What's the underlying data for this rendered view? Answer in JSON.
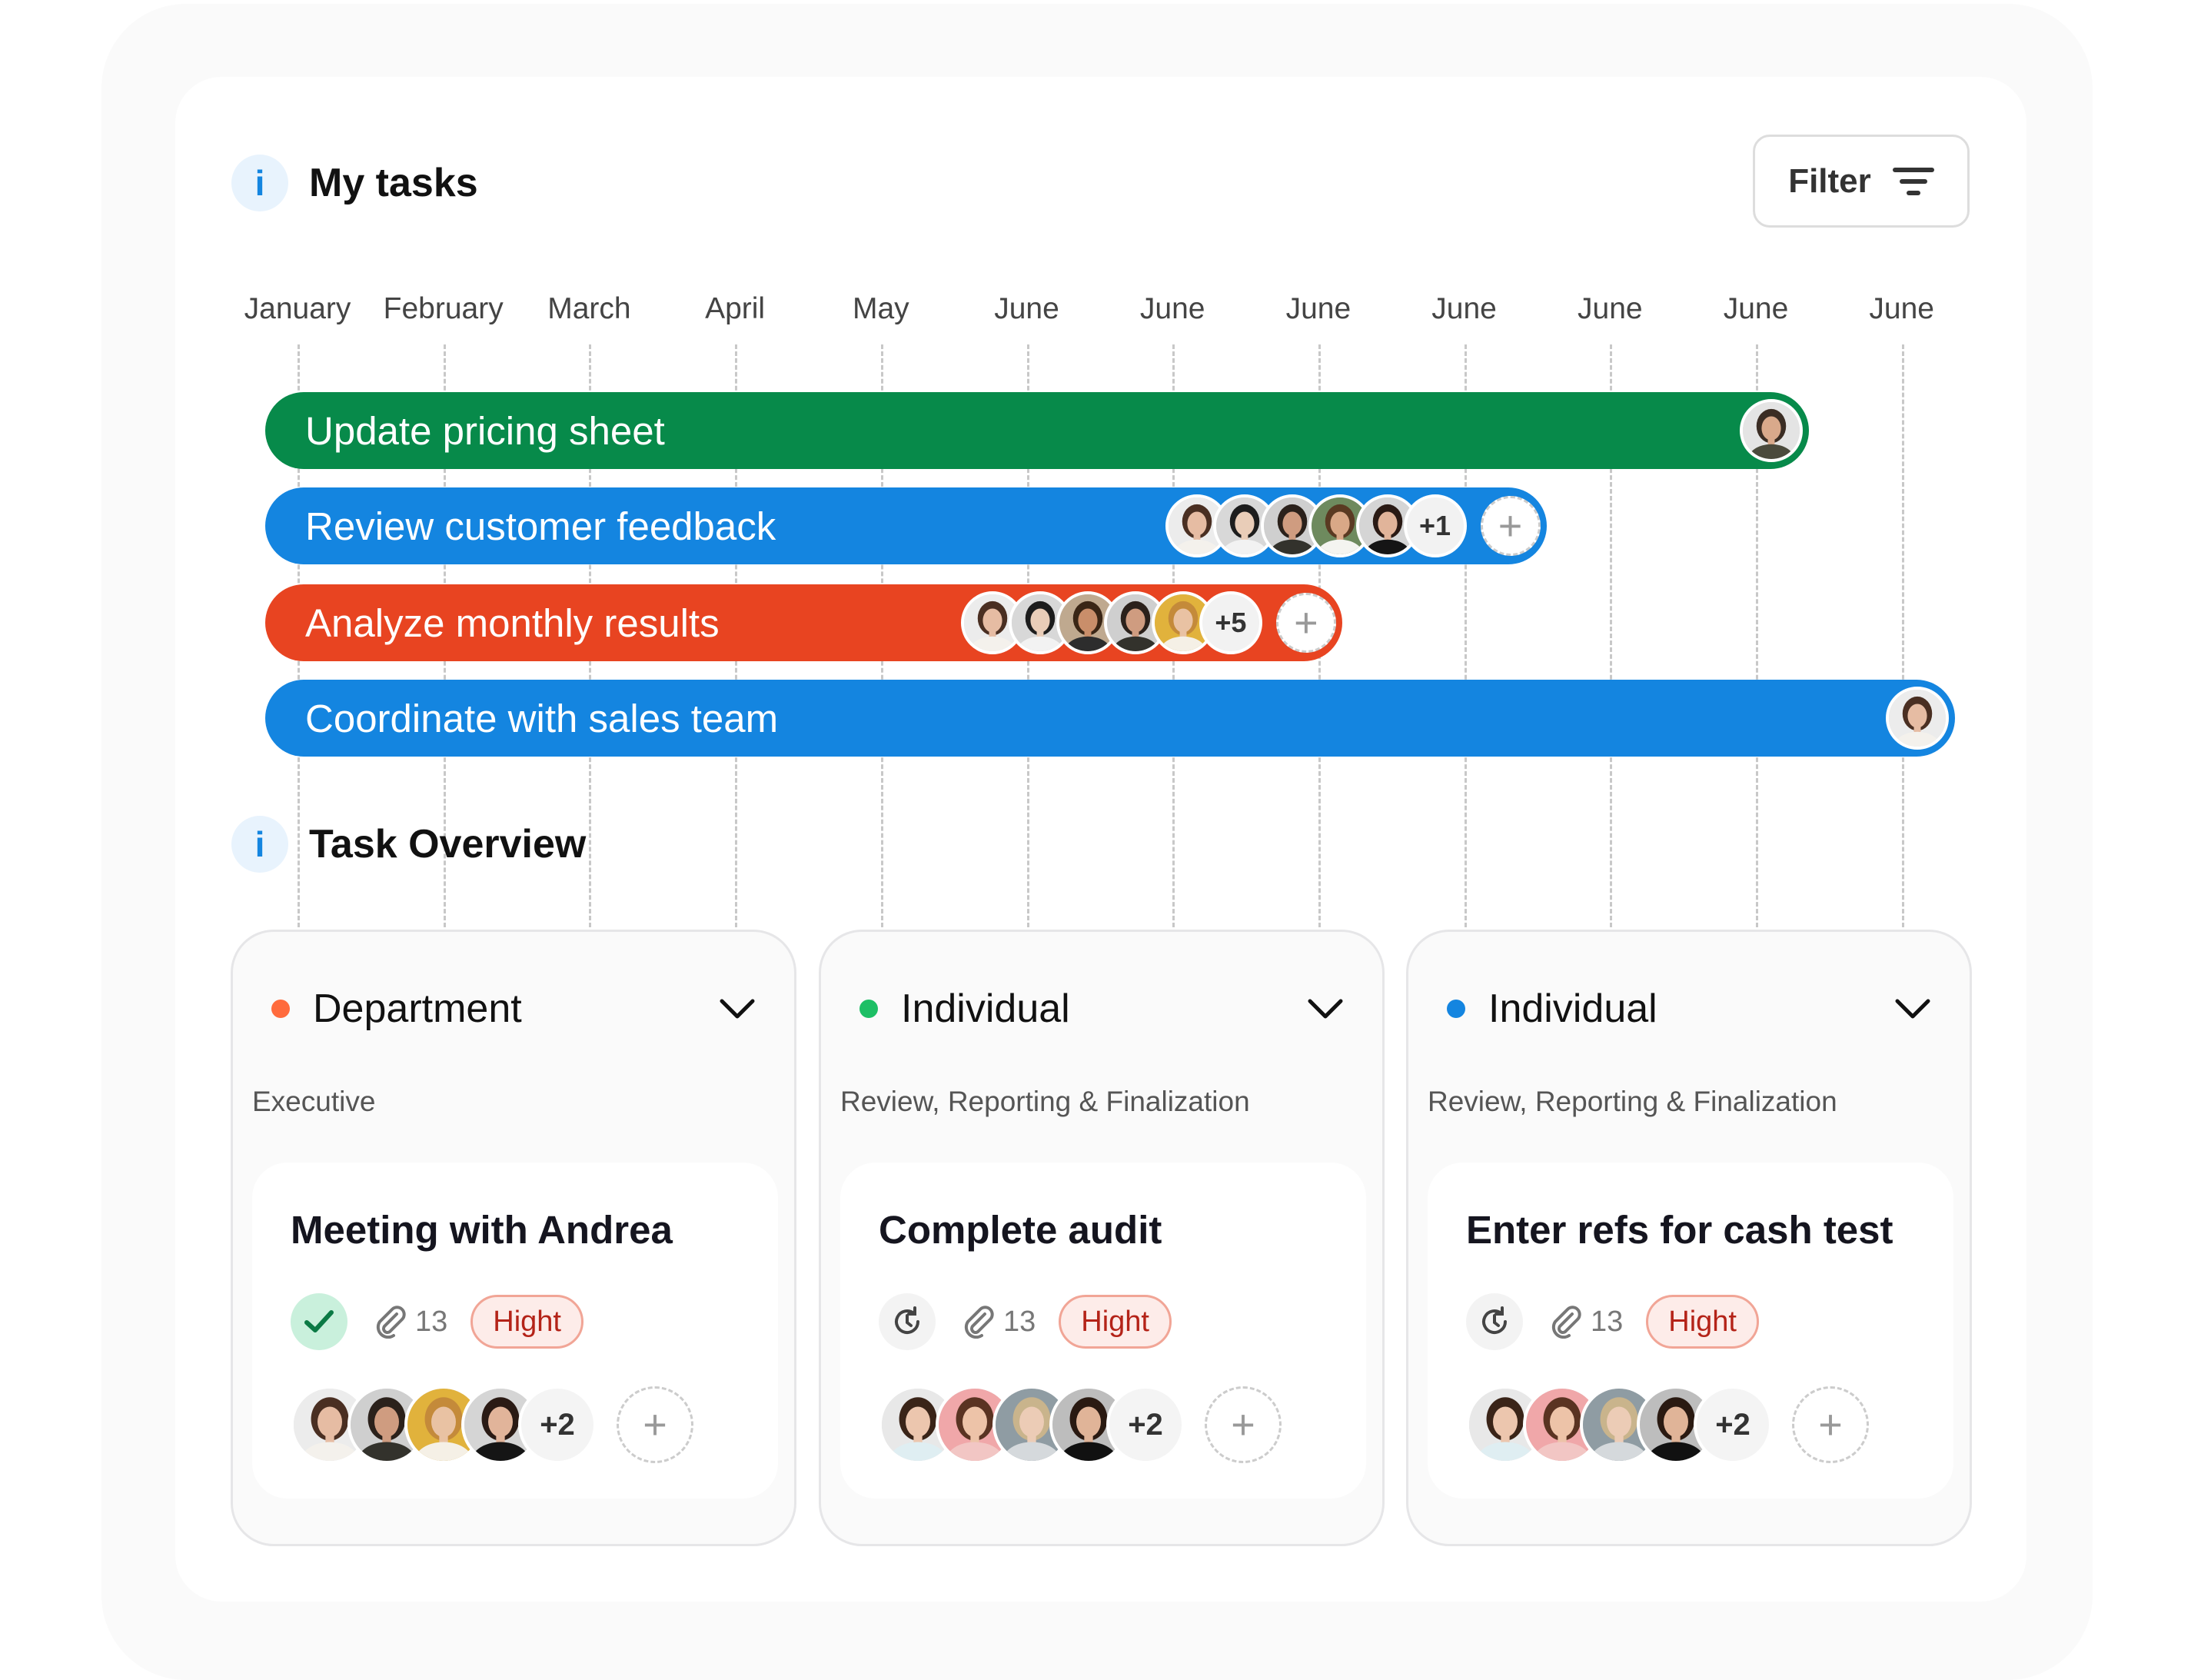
{
  "header": {
    "info_icon": "i",
    "title": "My tasks",
    "filter_label": "Filter",
    "filter_icon": "filter-lines-icon"
  },
  "timeline": {
    "months": [
      "January",
      "February",
      "March",
      "April",
      "May",
      "June",
      "June",
      "June",
      "June",
      "June",
      "June",
      "June"
    ],
    "tasks": [
      {
        "label": "Update pricing sheet",
        "color": "#078a4a",
        "end_month_index": 10.1,
        "avatars": [
          {
            "bg": "#e4e4e4",
            "hair": "#3b2d24",
            "skin": "#d9a98b",
            "shirt": "#4b4a3c"
          }
        ],
        "more": null,
        "add": false
      },
      {
        "label": "Review customer feedback",
        "color": "#1485e0",
        "end_month_index": 8.3,
        "avatars": [
          {
            "bg": "#ececec",
            "hair": "#4a2f22",
            "skin": "#e6bca3",
            "shirt": "#f4f1ec"
          },
          {
            "bg": "#d8d8d8",
            "hair": "#1d1d1d",
            "skin": "#e9cdb8",
            "shirt": "#f2f2f2"
          },
          {
            "bg": "#cfcfcf",
            "hair": "#2b211b",
            "skin": "#cf9c80",
            "shirt": "#33322c"
          },
          {
            "bg": "#6e8a5e",
            "hair": "#5a3a22",
            "skin": "#d9a887",
            "shirt": "#f4f4f0"
          },
          {
            "bg": "#d5d5d5",
            "hair": "#2a1a14",
            "skin": "#e1b49a",
            "shirt": "#151515"
          }
        ],
        "more": "+1",
        "add": true
      },
      {
        "label": "Analyze monthly results",
        "color": "#e84421",
        "end_month_index": 6.9,
        "avatars": [
          {
            "bg": "#ececec",
            "hair": "#4a2f22",
            "skin": "#e6bca3",
            "shirt": "#f4f1ec"
          },
          {
            "bg": "#d8d8d8",
            "hair": "#1d1d1d",
            "skin": "#e9cdb8",
            "shirt": "#f2f2f2"
          },
          {
            "bg": "#bfa98f",
            "hair": "#3a2616",
            "skin": "#c98e6a",
            "shirt": "#2d2d2d"
          },
          {
            "bg": "#cfcfcf",
            "hair": "#2b211b",
            "skin": "#cf9c80",
            "shirt": "#33322c"
          },
          {
            "bg": "#e1b23c",
            "hair": "#c48a3a",
            "skin": "#e9c2a3",
            "shirt": "#f5f0e6"
          }
        ],
        "more": "+5",
        "add": true
      },
      {
        "label": "Coordinate with sales team",
        "color": "#1485e0",
        "end_month_index": 11.1,
        "avatars": [
          {
            "bg": "#ececec",
            "hair": "#4a2f22",
            "skin": "#e6bca3",
            "shirt": "#f4f1ec"
          }
        ],
        "more": null,
        "add": false
      }
    ]
  },
  "overview": {
    "info_icon": "i",
    "title": "Task Overview",
    "cards": [
      {
        "dot_color": "#ff6b3d",
        "title": "Department",
        "subtitle": "Executive",
        "task": "Meeting with Andrea",
        "status": "done",
        "status_icon": "check-icon",
        "attachments": "13",
        "priority": "Hight",
        "avatars": [
          {
            "bg": "#ececec",
            "hair": "#4a2f22",
            "skin": "#e6bca3",
            "shirt": "#f4f1ec"
          },
          {
            "bg": "#cfcfcf",
            "hair": "#2b211b",
            "skin": "#cf9c80",
            "shirt": "#33322c"
          },
          {
            "bg": "#e1b23c",
            "hair": "#c48a3a",
            "skin": "#e9c2a3",
            "shirt": "#f5f0e6"
          },
          {
            "bg": "#d5d5d5",
            "hair": "#2a1a14",
            "skin": "#e1b49a",
            "shirt": "#151515"
          }
        ],
        "more": "+2"
      },
      {
        "dot_color": "#1dbf65",
        "title": "Individual",
        "subtitle": "Review, Reporting & Finalization",
        "task": "Complete audit",
        "status": "recurring",
        "status_icon": "refresh-clock-icon",
        "attachments": "13",
        "priority": "Hight",
        "avatars": [
          {
            "bg": "#e8e8e8",
            "hair": "#3a2418",
            "skin": "#ecc6ae",
            "shirt": "#dfeef2"
          },
          {
            "bg": "#f0a7a9",
            "hair": "#5a3322",
            "skin": "#edc3a8",
            "shirt": "#f2c6c4"
          },
          {
            "bg": "#8f9ca3",
            "hair": "#c9b48c",
            "skin": "#ecccb6",
            "shirt": "#d5d9dc"
          },
          {
            "bg": "#bdbdbd",
            "hair": "#2a1a12",
            "skin": "#e0b498",
            "shirt": "#111111"
          }
        ],
        "more": "+2"
      },
      {
        "dot_color": "#1485e0",
        "title": "Individual",
        "subtitle": "Review, Reporting & Finalization",
        "task": "Enter refs for cash test",
        "status": "recurring",
        "status_icon": "refresh-clock-icon",
        "attachments": "13",
        "priority": "Hight",
        "avatars": [
          {
            "bg": "#e8e8e8",
            "hair": "#3a2418",
            "skin": "#ecc6ae",
            "shirt": "#dfeef2"
          },
          {
            "bg": "#f0a7a9",
            "hair": "#5a3322",
            "skin": "#edc3a8",
            "shirt": "#f2c6c4"
          },
          {
            "bg": "#8f9ca3",
            "hair": "#c9b48c",
            "skin": "#ecccb6",
            "shirt": "#d5d9dc"
          },
          {
            "bg": "#bdbdbd",
            "hair": "#2a1a12",
            "skin": "#e0b498",
            "shirt": "#111111"
          }
        ],
        "more": "+2"
      }
    ]
  }
}
